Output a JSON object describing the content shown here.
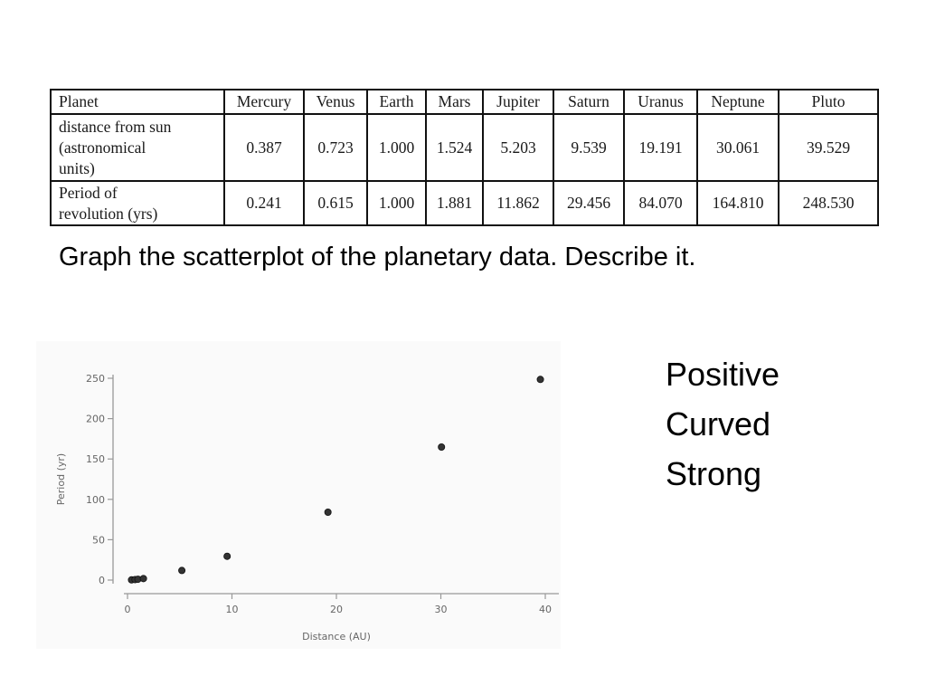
{
  "table": {
    "headers": [
      "Planet",
      "Mercury",
      "Venus",
      "Earth",
      "Mars",
      "Jupiter",
      "Saturn",
      "Uranus",
      "Neptune",
      "Pluto"
    ],
    "rows": [
      {
        "label_lines": [
          "distance from sun",
          "(astronomical",
          "units)"
        ],
        "values": [
          "0.387",
          "0.723",
          "1.000",
          "1.524",
          "5.203",
          "9.539",
          "19.191",
          "30.061",
          "39.529"
        ]
      },
      {
        "label_lines": [
          "Period of",
          "revolution (yrs)"
        ],
        "values": [
          "0.241",
          "0.615",
          "1.000",
          "1.881",
          "11.862",
          "29.456",
          "84.070",
          "164.810",
          "248.530"
        ]
      }
    ]
  },
  "question": "Graph the scatterplot of the planetary data. Describe it.",
  "descriptors": [
    "Positive",
    "Curved",
    "Strong"
  ],
  "chart_data": {
    "type": "scatter",
    "xlabel": "Distance (AU)",
    "ylabel": "Period (yr)",
    "xlim": [
      0,
      40
    ],
    "ylim": [
      0,
      250
    ],
    "x_ticks": [
      "0",
      "10",
      "20",
      "30",
      "40"
    ],
    "y_ticks": [
      "0",
      "50",
      "100",
      "150",
      "200",
      "250"
    ],
    "x": [
      0.387,
      0.723,
      1.0,
      1.524,
      5.203,
      9.539,
      19.191,
      30.061,
      39.529
    ],
    "y": [
      0.241,
      0.615,
      1.0,
      1.881,
      11.862,
      29.456,
      84.07,
      164.81,
      248.53
    ],
    "grid": false,
    "point_color": "#333333"
  }
}
